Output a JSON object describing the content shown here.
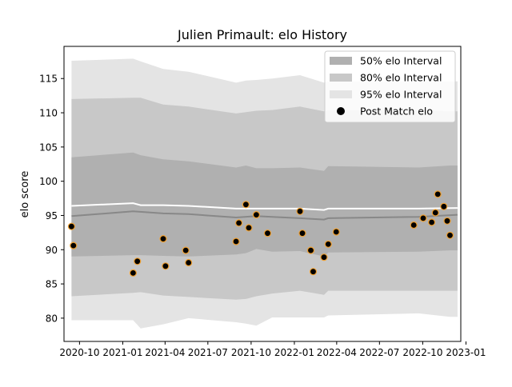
{
  "chart_data": {
    "type": "line",
    "title": "Julien Primault: elo History",
    "xlabel": "",
    "ylabel": "elo score",
    "xlim": [
      "2020-08-29",
      "2022-12-21"
    ],
    "ylim": [
      76.6,
      119.7
    ],
    "x_ticks": [
      "2020-10",
      "2021-01",
      "2021-04",
      "2021-07",
      "2021-10",
      "2022-01",
      "2022-04",
      "2022-07",
      "2022-10",
      "2023-01"
    ],
    "y_ticks": [
      80,
      85,
      90,
      95,
      100,
      105,
      110,
      115
    ],
    "grid": false,
    "legend_position": "top-right",
    "legend": [
      {
        "label": "50% elo Interval",
        "kind": "band",
        "color": "#b0b0b0"
      },
      {
        "label": "80% elo Interval",
        "kind": "band",
        "color": "#c8c8c8"
      },
      {
        "label": "95% elo Interval",
        "kind": "band",
        "color": "#e4e4e4"
      },
      {
        "label": "Post Match elo",
        "kind": "marker",
        "color": "#000000"
      }
    ],
    "bands": {
      "x": [
        "2020-09-14",
        "2021-01-23",
        "2021-02-08",
        "2021-03-28",
        "2021-05-21",
        "2021-08-30",
        "2021-09-20",
        "2021-10-12",
        "2021-11-15",
        "2022-01-13",
        "2022-03-05",
        "2022-03-14",
        "2022-09-22",
        "2022-11-28",
        "2022-12-14"
      ],
      "p95_upper": [
        117.6,
        117.9,
        117.5,
        116.4,
        116.0,
        114.4,
        114.7,
        114.8,
        115.0,
        115.5,
        114.4,
        114.6,
        114.6,
        114.6,
        114.6
      ],
      "p80_upper": [
        112.0,
        112.2,
        112.2,
        111.2,
        110.9,
        109.9,
        110.1,
        110.3,
        110.4,
        110.9,
        110.2,
        110.4,
        110.4,
        110.2,
        110.2
      ],
      "p50_upper": [
        103.5,
        104.2,
        103.8,
        103.2,
        102.9,
        102.0,
        102.3,
        101.9,
        101.9,
        102.0,
        101.5,
        102.2,
        102.0,
        102.3,
        102.3
      ],
      "p50_lower": [
        89.0,
        89.2,
        89.2,
        89.1,
        89.0,
        89.3,
        89.5,
        90.1,
        89.7,
        89.8,
        89.0,
        89.6,
        89.7,
        89.9,
        89.9
      ],
      "p80_lower": [
        83.2,
        83.7,
        83.8,
        83.3,
        83.1,
        82.7,
        82.8,
        83.2,
        83.6,
        84.0,
        83.4,
        84.0,
        84.0,
        84.0,
        84.0
      ],
      "p95_lower": [
        79.7,
        79.7,
        78.5,
        79.1,
        80.0,
        79.4,
        79.2,
        78.9,
        80.1,
        80.1,
        80.1,
        80.4,
        80.7,
        80.2,
        80.2
      ]
    },
    "series": [
      {
        "x": [
          "2020-09-14",
          "2021-01-23",
          "2021-03-28",
          "2021-05-21",
          "2021-08-30",
          "2021-10-12",
          "2021-11-15",
          "2022-01-13",
          "2022-03-05",
          "2022-03-14",
          "2022-09-22",
          "2022-12-14"
        ],
        "values": [
          94.9,
          95.6,
          95.3,
          95.2,
          94.7,
          94.9,
          94.8,
          94.6,
          94.4,
          94.6,
          94.8,
          95.1
        ],
        "color": "#888888"
      },
      {
        "x": [
          "2020-09-14",
          "2021-01-23",
          "2021-02-08",
          "2021-03-28",
          "2021-05-21",
          "2021-08-30",
          "2021-10-12",
          "2022-01-13",
          "2022-03-05",
          "2022-03-14",
          "2022-09-22",
          "2022-12-14"
        ],
        "values": [
          96.4,
          96.8,
          96.5,
          96.5,
          96.4,
          96.0,
          96.0,
          96.0,
          95.8,
          96.0,
          96.0,
          96.1
        ],
        "color": "#ffffff"
      }
    ],
    "points": [
      {
        "x": "2020-09-14",
        "y": 93.4
      },
      {
        "x": "2020-09-18",
        "y": 90.6
      },
      {
        "x": "2021-01-23",
        "y": 86.6
      },
      {
        "x": "2021-02-01",
        "y": 88.3
      },
      {
        "x": "2021-03-28",
        "y": 91.6
      },
      {
        "x": "2021-04-02",
        "y": 87.6
      },
      {
        "x": "2021-05-15",
        "y": 89.9
      },
      {
        "x": "2021-05-21",
        "y": 88.1
      },
      {
        "x": "2021-08-30",
        "y": 91.2
      },
      {
        "x": "2021-09-05",
        "y": 93.9
      },
      {
        "x": "2021-09-20",
        "y": 96.6
      },
      {
        "x": "2021-09-26",
        "y": 93.2
      },
      {
        "x": "2021-10-12",
        "y": 95.1
      },
      {
        "x": "2021-11-05",
        "y": 92.4
      },
      {
        "x": "2022-01-13",
        "y": 95.6
      },
      {
        "x": "2022-01-18",
        "y": 92.4
      },
      {
        "x": "2022-02-05",
        "y": 89.9
      },
      {
        "x": "2022-02-10",
        "y": 86.8
      },
      {
        "x": "2022-03-05",
        "y": 88.9
      },
      {
        "x": "2022-03-14",
        "y": 90.8
      },
      {
        "x": "2022-03-31",
        "y": 92.6
      },
      {
        "x": "2022-09-12",
        "y": 93.6
      },
      {
        "x": "2022-10-02",
        "y": 94.6
      },
      {
        "x": "2022-10-20",
        "y": 94.0
      },
      {
        "x": "2022-10-28",
        "y": 95.4
      },
      {
        "x": "2022-11-02",
        "y": 98.1
      },
      {
        "x": "2022-11-15",
        "y": 96.3
      },
      {
        "x": "2022-11-22",
        "y": 94.2
      },
      {
        "x": "2022-11-28",
        "y": 92.1
      }
    ],
    "point_color": "#000000",
    "point_edge_color": "#f0a030"
  }
}
